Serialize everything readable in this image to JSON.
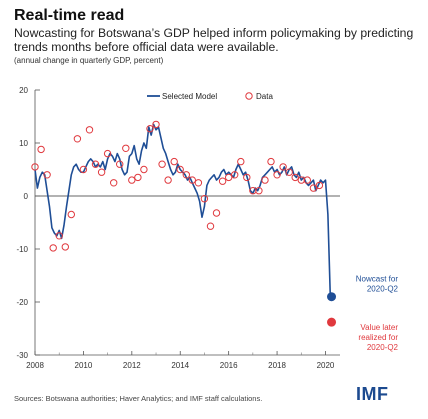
{
  "header": {
    "title": "Real-time read",
    "subtitle": "Nowcasting for Botswana’s GDP helped inform policymaking by predicting trends months before official data were available.",
    "note": "(annual change in quarterly GDP, percent)"
  },
  "footer": {
    "source": "Sources: Botswana authorities; Haver Analytics; and IMF staff calculations.",
    "logo": "IMF"
  },
  "colors": {
    "line": "#1f4e96",
    "data": "#e0393e",
    "text": "#222222",
    "grid": "#cccccc"
  },
  "chart_data": {
    "type": "line",
    "title": "Real-time read",
    "xlabel": "",
    "ylabel": "",
    "xlim": [
      2008,
      2020.6
    ],
    "ylim": [
      -30,
      20
    ],
    "x_ticks": [
      "2008",
      "2010",
      "2012",
      "2014",
      "2016",
      "2018",
      "2020"
    ],
    "y_ticks": [
      "20",
      "10",
      "0",
      "-10",
      "-20",
      "-30"
    ],
    "legend": {
      "position": "top",
      "entries": [
        "Selected Model",
        "Data"
      ]
    },
    "series": [
      {
        "name": "Selected Model",
        "style": "line",
        "x": [
          2008.0,
          2008.1,
          2008.2,
          2008.3,
          2008.4,
          2008.5,
          2008.6,
          2008.7,
          2008.8,
          2008.9,
          2009.0,
          2009.1,
          2009.2,
          2009.3,
          2009.4,
          2009.5,
          2009.6,
          2009.7,
          2009.8,
          2009.9,
          2010.0,
          2010.1,
          2010.2,
          2010.3,
          2010.4,
          2010.5,
          2010.6,
          2010.7,
          2010.8,
          2010.9,
          2011.0,
          2011.1,
          2011.2,
          2011.3,
          2011.4,
          2011.5,
          2011.6,
          2011.7,
          2011.8,
          2011.9,
          2012.0,
          2012.1,
          2012.2,
          2012.3,
          2012.4,
          2012.5,
          2012.6,
          2012.7,
          2012.8,
          2012.9,
          2013.0,
          2013.1,
          2013.2,
          2013.3,
          2013.4,
          2013.5,
          2013.6,
          2013.7,
          2013.8,
          2013.9,
          2014.0,
          2014.1,
          2014.2,
          2014.3,
          2014.4,
          2014.5,
          2014.6,
          2014.7,
          2014.8,
          2014.9,
          2015.0,
          2015.1,
          2015.2,
          2015.3,
          2015.4,
          2015.5,
          2015.6,
          2015.7,
          2015.8,
          2015.9,
          2016.0,
          2016.1,
          2016.2,
          2016.3,
          2016.4,
          2016.5,
          2016.6,
          2016.7,
          2016.8,
          2016.9,
          2017.0,
          2017.1,
          2017.2,
          2017.3,
          2017.4,
          2017.5,
          2017.6,
          2017.7,
          2017.8,
          2017.9,
          2018.0,
          2018.1,
          2018.2,
          2018.3,
          2018.4,
          2018.5,
          2018.6,
          2018.7,
          2018.8,
          2018.9,
          2019.0,
          2019.1,
          2019.2,
          2019.3,
          2019.4,
          2019.5,
          2019.6,
          2019.7,
          2019.8,
          2019.9,
          2020.0,
          2020.1,
          2020.2
        ],
        "values": [
          5.0,
          1.5,
          3.5,
          4.5,
          4.0,
          1.0,
          -2.0,
          -6.0,
          -7.0,
          -7.5,
          -6.5,
          -8.0,
          -5.5,
          -2.0,
          1.0,
          4.0,
          5.5,
          6.0,
          5.0,
          4.5,
          4.5,
          5.5,
          6.5,
          7.0,
          6.5,
          5.5,
          6.0,
          5.5,
          6.5,
          5.0,
          7.0,
          8.0,
          7.5,
          6.5,
          8.0,
          7.0,
          5.0,
          4.0,
          4.5,
          7.5,
          8.0,
          9.5,
          7.0,
          6.0,
          8.5,
          10.0,
          9.0,
          13.0,
          11.5,
          13.5,
          12.5,
          13.0,
          11.0,
          9.0,
          8.0,
          6.5,
          5.0,
          4.0,
          4.5,
          6.0,
          5.0,
          4.5,
          4.0,
          3.0,
          3.5,
          2.5,
          1.5,
          0.5,
          -1.0,
          -4.0,
          -2.0,
          2.0,
          3.0,
          3.5,
          4.0,
          3.0,
          3.5,
          4.5,
          5.0,
          4.0,
          4.5,
          4.0,
          3.5,
          5.0,
          6.0,
          5.0,
          4.0,
          4.5,
          3.0,
          1.0,
          0.5,
          1.5,
          1.0,
          2.0,
          3.5,
          4.0,
          4.5,
          5.0,
          5.5,
          4.5,
          5.0,
          4.0,
          4.5,
          5.5,
          4.0,
          5.0,
          5.5,
          4.0,
          3.5,
          4.5,
          3.0,
          3.5,
          2.5,
          2.0,
          2.5,
          3.0,
          1.0,
          2.0,
          3.0,
          2.5,
          3.0,
          -3.5,
          -19.0
        ]
      },
      {
        "name": "Data",
        "style": "markers",
        "x": [
          2008.0,
          2008.25,
          2008.5,
          2008.75,
          2009.0,
          2009.25,
          2009.5,
          2009.75,
          2010.0,
          2010.25,
          2010.5,
          2010.75,
          2011.0,
          2011.25,
          2011.5,
          2011.75,
          2012.0,
          2012.25,
          2012.5,
          2012.75,
          2013.0,
          2013.25,
          2013.5,
          2013.75,
          2014.0,
          2014.25,
          2014.5,
          2014.75,
          2015.0,
          2015.25,
          2015.5,
          2015.75,
          2016.0,
          2016.25,
          2016.5,
          2016.75,
          2017.0,
          2017.25,
          2017.5,
          2017.75,
          2018.0,
          2018.25,
          2018.5,
          2018.75,
          2019.0,
          2019.25,
          2019.5,
          2019.75,
          2020.25
        ],
        "values": [
          5.5,
          8.8,
          4.0,
          -9.8,
          -7.5,
          -9.6,
          -3.5,
          10.8,
          5.0,
          12.5,
          6.0,
          4.5,
          8.0,
          2.5,
          6.0,
          9.0,
          3.0,
          3.5,
          5.0,
          12.7,
          13.5,
          6.0,
          3.0,
          6.5,
          5.0,
          4.0,
          3.0,
          2.5,
          -0.5,
          -5.7,
          -3.2,
          2.8,
          3.5,
          4.0,
          6.5,
          3.5,
          1.0,
          1.0,
          3.0,
          6.5,
          4.0,
          5.5,
          4.5,
          3.5,
          3.0,
          3.0,
          1.5,
          2.0,
          -23.8
        ]
      }
    ],
    "annotations": [
      {
        "text": [
          "Nowcast for",
          "2020-Q2"
        ],
        "x": 2020.25,
        "y": -19.0,
        "marker": "filled",
        "color": "#1f4e96"
      },
      {
        "text": [
          "Value later",
          "realized for",
          "2020-Q2"
        ],
        "x": 2020.25,
        "y": -23.8,
        "marker": "filled",
        "color": "#e0393e"
      }
    ]
  }
}
